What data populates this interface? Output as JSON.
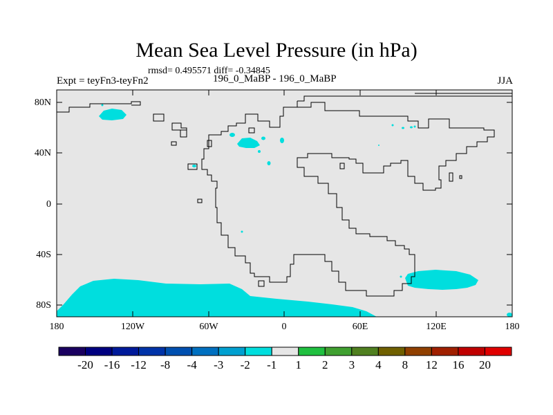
{
  "header": {
    "title": "Mean Sea Level Pressure (in hPa)",
    "stats": "rmsd= 0.495571 diff= -0.34845",
    "experiment": "Expt = teyFn3-teyFn2",
    "diff_label": "196_0_MaBP - 196_0_MaBP",
    "season": "JJA"
  },
  "axes": {
    "y_ticks": [
      "80N",
      "40N",
      "0",
      "40S",
      "80S"
    ],
    "x_ticks": [
      "180",
      "120W",
      "60W",
      "0",
      "60E",
      "120E",
      "180"
    ]
  },
  "colorbar": {
    "labels": [
      "-20",
      "-16",
      "-12",
      "-8",
      "-4",
      "-3",
      "-2",
      "-1",
      "1",
      "2",
      "3",
      "4",
      "8",
      "12",
      "16",
      "20"
    ],
    "colors": [
      "#1a0060",
      "#000080",
      "#001a9a",
      "#0033a8",
      "#0050b0",
      "#0070c0",
      "#00a0d0",
      "#00dede",
      "#e6e6e6",
      "#20c040",
      "#40a030",
      "#508020",
      "#706000",
      "#904000",
      "#a02000",
      "#c00000",
      "#e00000"
    ]
  },
  "map": {
    "background_color": "#e6e6e6",
    "anomaly_color": "#00dede",
    "coastline_color": "#000000"
  }
}
